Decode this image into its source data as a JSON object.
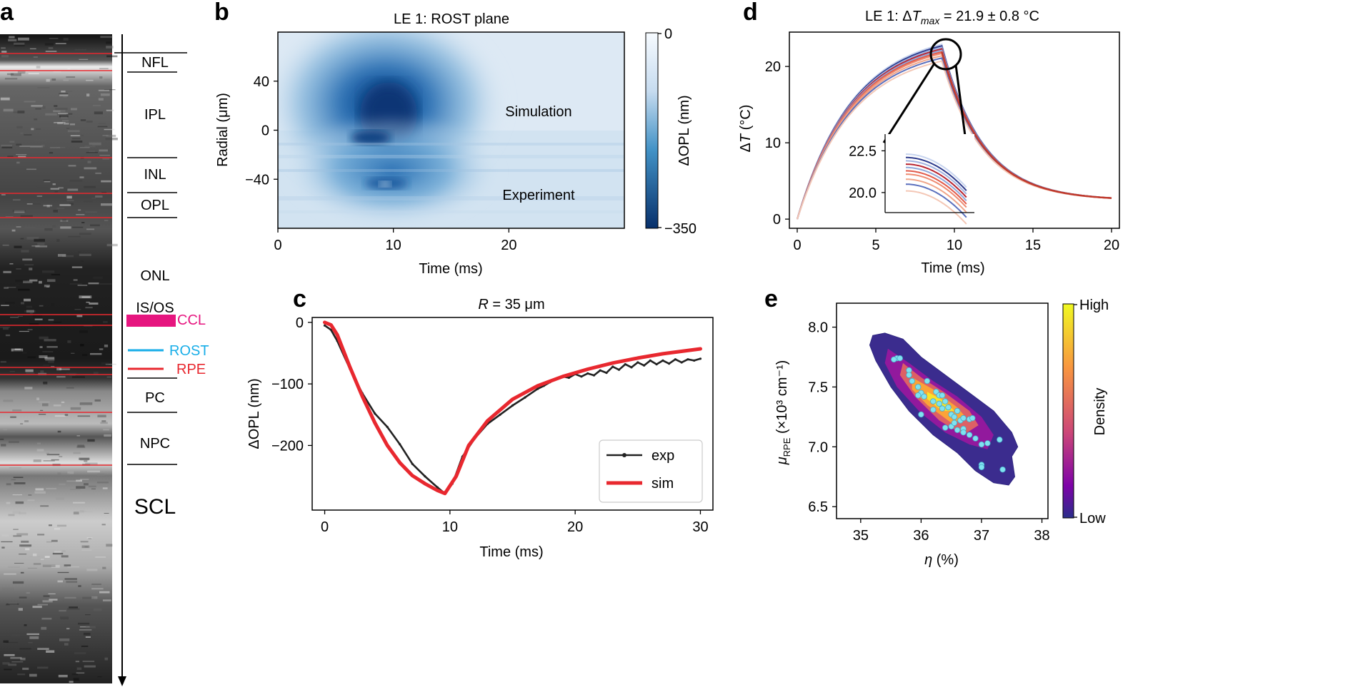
{
  "panel_letters": {
    "a": "a",
    "b": "b",
    "c": "c",
    "d": "d",
    "e": "e"
  },
  "colors": {
    "red": "#e8282f",
    "magenta": "#e6157f",
    "cyan": "#19aee8",
    "axis": "#000000"
  },
  "panel_a": {
    "layers": [
      "NFL",
      "IPL",
      "INL",
      "OPL",
      "ONL",
      "IS/OS",
      "PC",
      "NPC",
      "SCL"
    ],
    "legend": {
      "ccl": "CCL",
      "rost": "ROST",
      "rpe": "RPE"
    }
  },
  "chart_data": [
    {
      "type": "heatmap",
      "panel": "b",
      "title": "LE 1: ROST plane",
      "xlabel": "Time (ms)",
      "ylabel": "Radial (μm)",
      "xlim": [
        0,
        30
      ],
      "ylim": [
        -80,
        80
      ],
      "xticks": [
        0,
        10,
        20
      ],
      "yticks": [
        40,
        0,
        -40
      ],
      "xtick_labels": [
        "0",
        "10",
        "20"
      ],
      "ytick_labels": [
        "40",
        "0",
        "−40"
      ],
      "annotations": [
        "Simulation",
        "Experiment"
      ],
      "colorbar": {
        "label": "ΔOPL (nm)",
        "min": "−350",
        "max": "0"
      }
    },
    {
      "type": "line",
      "panel": "c",
      "title_prefix": "R",
      "title_suffix": " = 35 μm",
      "xlabel": "Time (ms)",
      "ylabel": "ΔOPL (nm)",
      "xlim": [
        -1,
        31
      ],
      "ylim": [
        -305,
        8
      ],
      "xticks": [
        0,
        10,
        20,
        30
      ],
      "yticks": [
        0,
        -100,
        -200
      ],
      "xtick_labels": [
        "0",
        "10",
        "20",
        "30"
      ],
      "ytick_labels": [
        "0",
        "−100",
        "−200"
      ],
      "legend": [
        "exp",
        "sim"
      ],
      "series": [
        {
          "name": "exp",
          "x": [
            0,
            0.5,
            1,
            2,
            3,
            4,
            5,
            6,
            7,
            8,
            9,
            9.6,
            10.2,
            11,
            12,
            13,
            14,
            15,
            16,
            17,
            17.5,
            18,
            18.5,
            19,
            19.5,
            20,
            20.5,
            21,
            21.5,
            22,
            22.5,
            23,
            23.5,
            24,
            24.5,
            25,
            25.5,
            26,
            26.5,
            27,
            27.5,
            28,
            28.5,
            29,
            29.5,
            30
          ],
          "y": [
            -5,
            -12,
            -30,
            -75,
            -115,
            -148,
            -170,
            -198,
            -230,
            -250,
            -268,
            -278,
            -262,
            -218,
            -188,
            -165,
            -150,
            -135,
            -122,
            -108,
            -103,
            -97,
            -91,
            -88,
            -90,
            -84,
            -88,
            -83,
            -86,
            -78,
            -82,
            -72,
            -77,
            -68,
            -73,
            -65,
            -70,
            -62,
            -68,
            -62,
            -67,
            -60,
            -65,
            -60,
            -62,
            -59
          ]
        },
        {
          "name": "sim",
          "x": [
            0,
            0.5,
            1,
            2,
            3,
            4,
            5,
            6,
            7,
            8,
            9,
            9.6,
            10.5,
            11.5,
            13,
            15,
            17,
            19,
            21,
            23,
            25,
            27,
            30
          ],
          "y": [
            0,
            -4,
            -20,
            -72,
            -120,
            -163,
            -200,
            -228,
            -249,
            -262,
            -273,
            -278,
            -250,
            -200,
            -160,
            -125,
            -103,
            -88,
            -76,
            -66,
            -58,
            -51,
            -43
          ]
        }
      ]
    },
    {
      "type": "line",
      "panel": "d",
      "title_prefix": "LE 1: Δ",
      "title_var": "T",
      "title_sub": "max",
      "title_suffix": " = 21.9 ± 0.8 °C",
      "xlabel": "Time (ms)",
      "ylabel_sym": "Δ",
      "ylabel_var": "T",
      "ylabel_unit": " (°C)",
      "xlim": [
        -0.5,
        20.5
      ],
      "ylim": [
        -1.2,
        24.5
      ],
      "xticks": [
        0,
        5,
        10,
        15,
        20
      ],
      "yticks": [
        0,
        10,
        20
      ],
      "xtick_labels": [
        "0",
        "5",
        "10",
        "15",
        "20"
      ],
      "ytick_labels": [
        "0",
        "10",
        "20"
      ],
      "peaks": [
        22.9,
        22.7,
        22.5,
        22.3,
        22.1,
        21.9,
        21.7,
        21.4,
        21.1,
        20.7
      ],
      "inset": {
        "yticks": [
          22.5,
          20.0
        ],
        "ytick_labels": [
          "22.5",
          "20.0"
        ],
        "ylim": [
          18.8,
          23.5
        ],
        "t_range": [
          5.2,
          10.8
        ]
      }
    },
    {
      "type": "scatter",
      "panel": "e",
      "xlabel_var": "η",
      "xlabel_unit": " (%)",
      "ylabel_var": "μ",
      "ylabel_sub": "RPE",
      "ylabel_unit": " (×10³ cm⁻¹)",
      "xlim": [
        34.6,
        38.1
      ],
      "ylim": [
        6.4,
        8.2
      ],
      "xticks": [
        35,
        36,
        37,
        38
      ],
      "yticks": [
        8.0,
        7.5,
        7.0,
        6.5
      ],
      "xtick_labels": [
        "35",
        "36",
        "37",
        "38"
      ],
      "ytick_labels": [
        "8.0",
        "7.5",
        "7.0",
        "6.5"
      ],
      "colorbar": {
        "label": "Density",
        "high": "High",
        "low": "Low"
      },
      "points": [
        [
          35.6,
          7.74
        ],
        [
          35.65,
          7.74
        ],
        [
          35.55,
          7.73
        ],
        [
          35.8,
          7.64
        ],
        [
          35.8,
          7.6
        ],
        [
          35.85,
          7.55
        ],
        [
          35.95,
          7.5
        ],
        [
          36.0,
          7.45
        ],
        [
          36.05,
          7.42
        ],
        [
          35.95,
          7.43
        ],
        [
          36.1,
          7.55
        ],
        [
          36.25,
          7.46
        ],
        [
          36.3,
          7.43
        ],
        [
          36.35,
          7.43
        ],
        [
          36.2,
          7.38
        ],
        [
          36.3,
          7.36
        ],
        [
          36.35,
          7.32
        ],
        [
          36.4,
          7.38
        ],
        [
          36.45,
          7.33
        ],
        [
          36.5,
          7.27
        ],
        [
          36.55,
          7.25
        ],
        [
          36.6,
          7.3
        ],
        [
          36.65,
          7.22
        ],
        [
          36.7,
          7.24
        ],
        [
          36.8,
          7.23
        ],
        [
          36.85,
          7.24
        ],
        [
          36.5,
          7.17
        ],
        [
          36.4,
          7.16
        ],
        [
          36.55,
          7.2
        ],
        [
          36.6,
          7.14
        ],
        [
          36.7,
          7.15
        ],
        [
          36.7,
          7.12
        ],
        [
          36.8,
          7.1
        ],
        [
          36.9,
          7.07
        ],
        [
          37.0,
          7.02
        ],
        [
          37.1,
          7.03
        ],
        [
          37.3,
          7.06
        ],
        [
          36.0,
          7.27
        ],
        [
          37.0,
          6.85
        ],
        [
          37.0,
          6.83
        ],
        [
          37.35,
          6.81
        ],
        [
          36.2,
          7.31
        ]
      ]
    }
  ]
}
